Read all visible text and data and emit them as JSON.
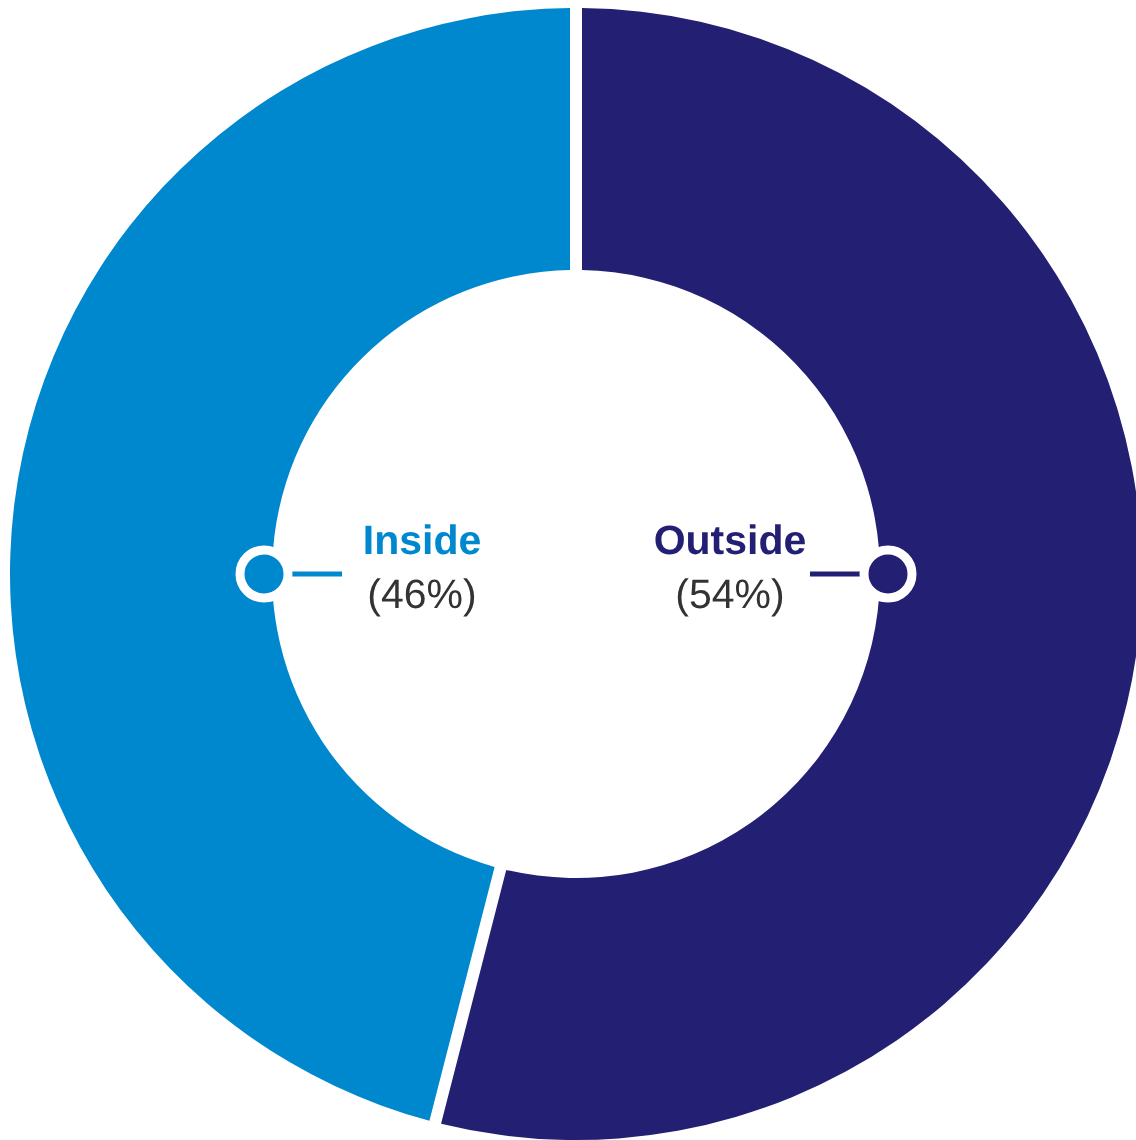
{
  "chart_data": {
    "type": "donut",
    "categories": [
      "Outside",
      "Inside"
    ],
    "values": [
      54,
      46
    ],
    "colors": [
      "#231f72",
      "#0088cf"
    ],
    "value_labels": [
      "(54%)",
      "(46%)"
    ]
  }
}
